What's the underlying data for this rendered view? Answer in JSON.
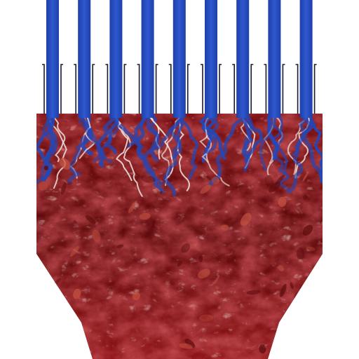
{
  "figure": {
    "type": "simulation-visualization",
    "colormap": {
      "cold": "#2347b8",
      "cold_highlight": "#3f6fe0",
      "mid": "#f4eeea",
      "hot": "#8e1518",
      "hot_dark": "#5a0a0c",
      "hot_light": "#c4523f"
    },
    "inlet_count": 9,
    "background": "#ffffff",
    "wall_color": "#1a1a2e"
  }
}
